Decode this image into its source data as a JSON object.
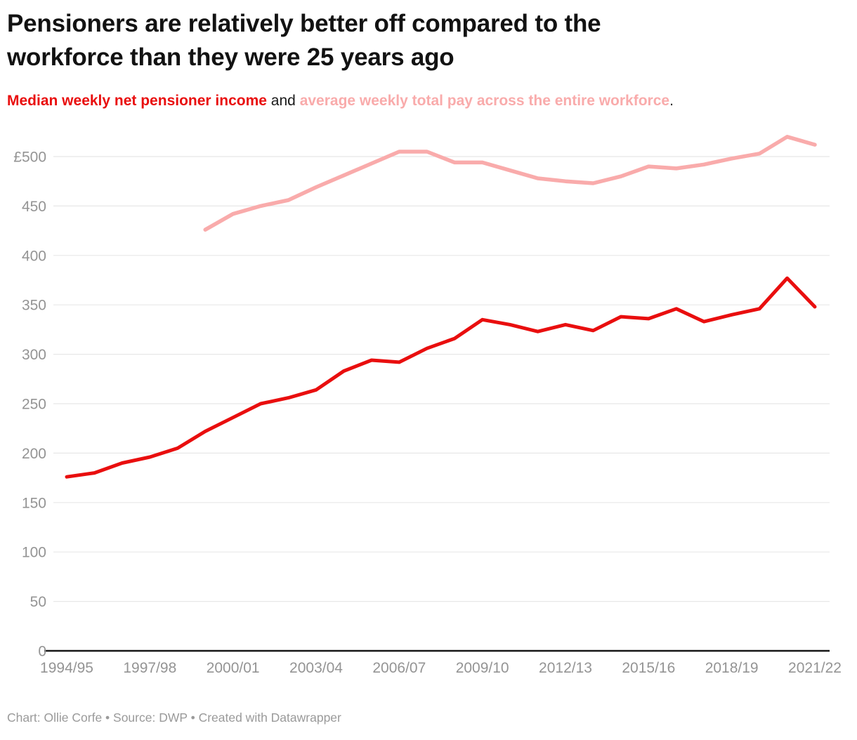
{
  "header": {
    "title_line1": "Pensioners are relatively better off compared to the",
    "title_line2": "workforce than they were 25 years ago",
    "subtitle_pensioner": "Median weekly net pensioner income",
    "subtitle_connector": "and",
    "subtitle_workforce": "average weekly total pay across the entire workforce",
    "subtitle_period": "."
  },
  "footer": {
    "credit": "Chart: Ollie Corfe • Source: DWP • Created with Datawrapper"
  },
  "colors": {
    "pensioner_red": "#e90e0e",
    "workforce_pink": "#f9abab",
    "title_black": "#121212",
    "axis_label_gray": "#949494",
    "gridline_gray": "#e8e8e8",
    "axis_line_black": "#161616",
    "credit_gray": "#9a9a9a"
  },
  "chart_data": {
    "type": "line",
    "title": "Pensioners are relatively better off compared to the workforce than they were 25 years ago",
    "subtitle": "Median weekly net pensioner income and average weekly total pay across the entire workforce.",
    "xlabel": "",
    "ylabel": "",
    "grid": "horizontal",
    "legend_position": "in-subtitle",
    "ylim": [
      0,
      530
    ],
    "y_ticks": [
      0,
      50,
      100,
      150,
      200,
      250,
      300,
      350,
      400,
      450,
      500
    ],
    "y_tick_labels": [
      "0",
      "50",
      "100",
      "150",
      "200",
      "250",
      "300",
      "350",
      "400",
      "450",
      "£500"
    ],
    "categories": [
      "1994/95",
      "1995/96",
      "1996/97",
      "1997/98",
      "1998/99",
      "1999/00",
      "2000/01",
      "2001/02",
      "2002/03",
      "2003/04",
      "2004/05",
      "2005/06",
      "2006/07",
      "2007/08",
      "2008/09",
      "2009/10",
      "2010/11",
      "2011/12",
      "2012/13",
      "2013/14",
      "2014/15",
      "2015/16",
      "2016/17",
      "2017/18",
      "2018/19",
      "2019/20",
      "2020/21",
      "2021/22"
    ],
    "x_tick_labels": [
      "1994/95",
      "1997/98",
      "2000/01",
      "2003/04",
      "2006/07",
      "2009/10",
      "2012/13",
      "2015/16",
      "2018/19",
      "2021/22"
    ],
    "x_tick_every": 3,
    "series": [
      {
        "name": "Median weekly net pensioner income",
        "color": "#e90e0e",
        "values": [
          176,
          180,
          190,
          196,
          205,
          222,
          236,
          250,
          256,
          264,
          283,
          294,
          292,
          306,
          316,
          335,
          330,
          323,
          330,
          324,
          338,
          336,
          346,
          333,
          340,
          346,
          377,
          348
        ]
      },
      {
        "name": "average weekly total pay across the entire workforce",
        "color": "#f9abab",
        "values": [
          null,
          null,
          null,
          null,
          null,
          426,
          442,
          450,
          456,
          469,
          481,
          493,
          505,
          505,
          494,
          494,
          486,
          478,
          475,
          473,
          480,
          490,
          488,
          492,
          498,
          503,
          520,
          512
        ]
      }
    ]
  }
}
